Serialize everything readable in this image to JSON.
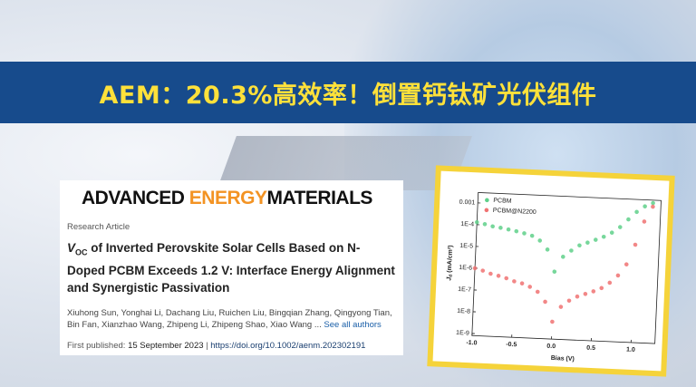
{
  "banner": {
    "title": "AEM：20.3%高效率！倒置钙钛矿光伏组件"
  },
  "article": {
    "journal": {
      "part1": "ADVANCED ",
      "part2": "ENERGY",
      "part3": "MATERIALS"
    },
    "type": "Research Article",
    "title_var": "V",
    "title_sub": "OC",
    "title_rest": " of Inverted Perovskite Solar Cells Based on N-Doped PCBM Exceeds 1.2 V: Interface Energy Alignment and Synergistic Passivation",
    "authors": "Xiuhong Sun, Yonghai Li, Dachang Liu, Ruichen Liu, Bingqian Zhang, Qingyong Tian, Bin Fan, Xianzhao Wang, Zhipeng Li, Zhipeng Shao, Xiao Wang ...",
    "see_all": "See all authors",
    "published_label": "First published:",
    "published_date": "15 September 2023",
    "separator": "|",
    "doi": "https://doi.org/10.1002/aenm.202302191"
  },
  "chart_data": {
    "type": "scatter",
    "xlabel": "Bias (V)",
    "ylabel": {
      "main": "J",
      "sub": "d",
      "unit": " (mA/cm²)"
    },
    "log_y": true,
    "legend": "top-left",
    "x": [
      -1.0,
      -0.9,
      -0.8,
      -0.7,
      -0.6,
      -0.5,
      -0.4,
      -0.3,
      -0.2,
      -0.1,
      0.0,
      0.1,
      0.2,
      0.3,
      0.4,
      0.5,
      0.6,
      0.7,
      0.8,
      0.9,
      1.0,
      1.1,
      1.2
    ],
    "series": [
      {
        "name": "PCBM",
        "color": "#5fd08a",
        "values": [
          0.00013,
          0.00011,
          9e-05,
          8e-05,
          7e-05,
          6e-05,
          5e-05,
          4e-05,
          2.5e-05,
          1e-05,
          1e-06,
          5e-06,
          1e-05,
          1.8e-05,
          2.5e-05,
          3.5e-05,
          5e-05,
          8e-05,
          0.00015,
          0.00035,
          0.0008,
          0.0015,
          0.0022
        ]
      },
      {
        "name": "PCBM@N2200",
        "color": "#f07272",
        "values": [
          1e-06,
          8e-07,
          6e-07,
          5e-07,
          4e-07,
          3e-07,
          2.5e-07,
          1.8e-07,
          1.1e-07,
          4e-08,
          5e-09,
          2.5e-08,
          5e-08,
          8e-08,
          1.1e-07,
          1.5e-07,
          2.2e-07,
          4e-07,
          9e-07,
          3e-06,
          2.5e-05,
          0.0003,
          0.0015
        ]
      }
    ],
    "xlim": [
      -1.0,
      1.3
    ],
    "xticks": [
      {
        "value": -1.0,
        "label": "-1.0"
      },
      {
        "value": -0.5,
        "label": "-0.5"
      },
      {
        "value": 0.0,
        "label": "0.0"
      },
      {
        "value": 0.5,
        "label": "0.5"
      },
      {
        "value": 1.0,
        "label": "1.0"
      }
    ],
    "ylim": [
      8e-10,
      0.003
    ],
    "yticks": [
      0.001,
      {
        "value": 0.0001,
        "label": "1E-4"
      },
      {
        "value": 1e-05,
        "label": "1E-5"
      },
      {
        "value": 1e-06,
        "label": "1E-6"
      },
      {
        "value": 1e-07,
        "label": "1E-7"
      },
      {
        "value": 1e-08,
        "label": "1E-8"
      },
      {
        "value": 1e-09,
        "label": "1E-9"
      }
    ]
  }
}
